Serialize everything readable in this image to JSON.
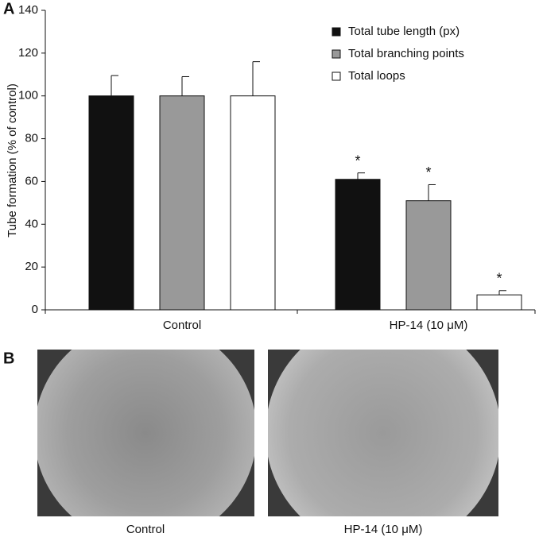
{
  "panel_labels": [
    "A",
    "B"
  ],
  "chart_data": {
    "type": "bar",
    "ylabel": "Tube formation (% of control)",
    "categories": [
      "Control",
      "HP-14 (10 μM)"
    ],
    "series": [
      {
        "name": "Total tube length (px)",
        "color": "#111111",
        "values": [
          100,
          61
        ],
        "errors": [
          9.5,
          3
        ],
        "significance": [
          null,
          "*"
        ]
      },
      {
        "name": "Total branching points",
        "color": "#999999",
        "values": [
          100,
          51
        ],
        "errors": [
          9,
          7.5
        ],
        "significance": [
          null,
          "*"
        ]
      },
      {
        "name": "Total loops",
        "color": "#ffffff",
        "values": [
          100,
          7
        ],
        "errors": [
          16,
          2
        ],
        "significance": [
          null,
          "*"
        ]
      }
    ],
    "ylim": [
      0,
      140
    ],
    "yticks": [
      0,
      20,
      40,
      60,
      80,
      100,
      120,
      140
    ],
    "legend": "upper right"
  },
  "panel_b": {
    "captions": [
      "Control",
      "HP-14 (10 μM)"
    ]
  }
}
